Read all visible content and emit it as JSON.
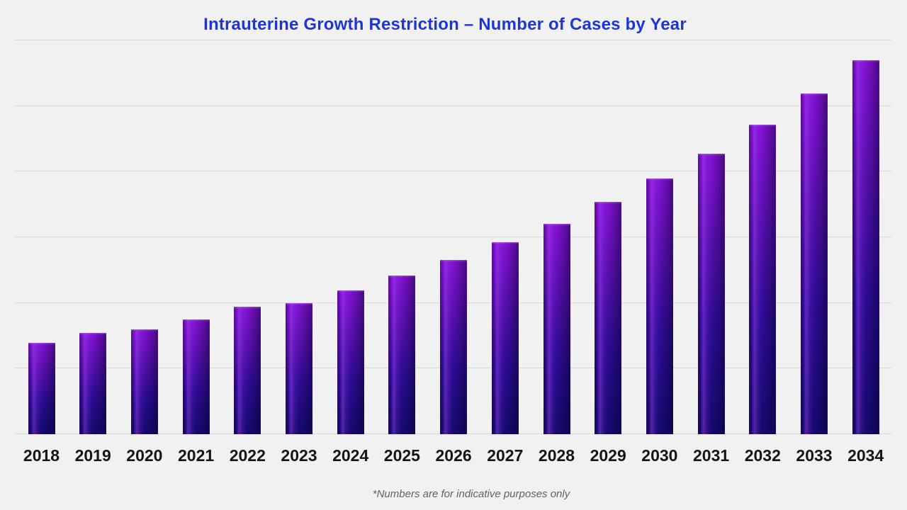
{
  "page": {
    "background": "#f1f1f2"
  },
  "chart_data": {
    "type": "bar",
    "title": "Intrauterine Growth Restriction – Number of Cases by Year",
    "title_color": "#1c36d6",
    "categories": [
      "2018",
      "2019",
      "2020",
      "2021",
      "2022",
      "2023",
      "2024",
      "2025",
      "2026",
      "2027",
      "2028",
      "2029",
      "2030",
      "2031",
      "2032",
      "2033",
      "2034"
    ],
    "values": [
      24.5,
      27.0,
      28.1,
      30.7,
      34.0,
      35.0,
      38.5,
      42.3,
      46.6,
      51.2,
      56.2,
      62.0,
      68.3,
      75.0,
      82.6,
      91.1,
      100
    ],
    "y_units": "relative cases index (2034 = 100); chart displays no numeric y-axis labels",
    "xlabel": "",
    "ylabel": "",
    "ylim": [
      0,
      105.2
    ],
    "grid": true,
    "gridline_count": 7,
    "gridline_color": "#d9d9db",
    "legend": false,
    "bar_colors": {
      "top": "#8312d4",
      "upper_mid": "#5a10b0",
      "lower_mid": "#2f0c96",
      "bottom": "#150a6e"
    },
    "x_tick_color": "#151515",
    "annotation": "*Numbers are for indicative purposes only",
    "annotation_color": "#616161"
  }
}
